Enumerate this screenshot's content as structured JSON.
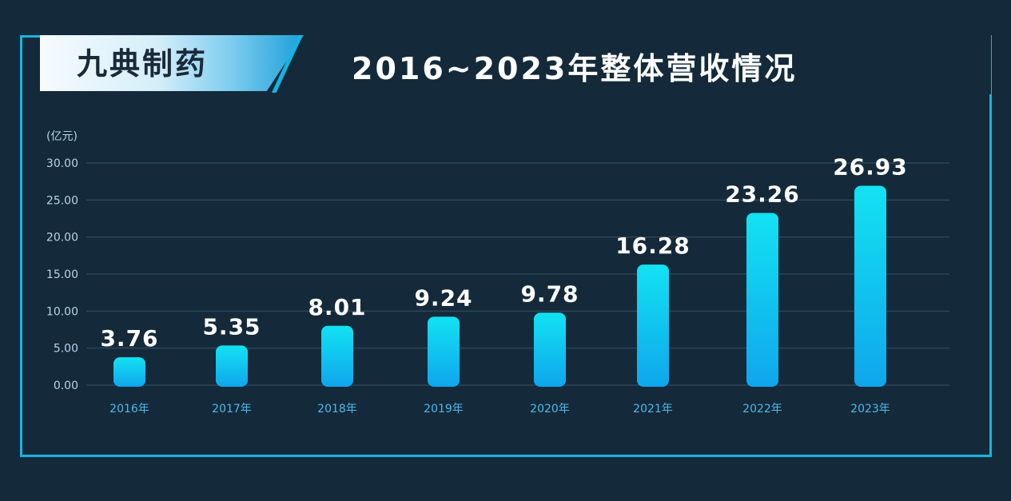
{
  "brand": "九典制药",
  "chart_data": {
    "type": "bar",
    "title": "2016~2023年整体营收情况",
    "unit": "(亿元)",
    "categories": [
      "2016年",
      "2017年",
      "2018年",
      "2019年",
      "2020年",
      "2021年",
      "2022年",
      "2023年"
    ],
    "values": [
      3.76,
      5.35,
      8.01,
      9.24,
      9.78,
      16.28,
      23.26,
      26.93
    ],
    "data_labels": [
      "3.76",
      "5.35",
      "8.01",
      "9.24",
      "9.78",
      "16.28",
      "23.26",
      "26.93"
    ],
    "ylim": [
      0,
      30
    ],
    "yticks": [
      "0.00",
      "5.00",
      "10.00",
      "15.00",
      "20.00",
      "25.00",
      "30.00"
    ],
    "ytick_values": [
      0,
      5,
      10,
      15,
      20,
      25,
      30
    ],
    "grid": true,
    "legend": "none",
    "colors": {
      "bar_top": "#12e2f2",
      "bar_bottom": "#0fa6ec",
      "grid": "#2c4658",
      "tick_text": "#b8d4e6",
      "category_text": "#4fb8ea",
      "label_text": "#ffffff"
    }
  }
}
